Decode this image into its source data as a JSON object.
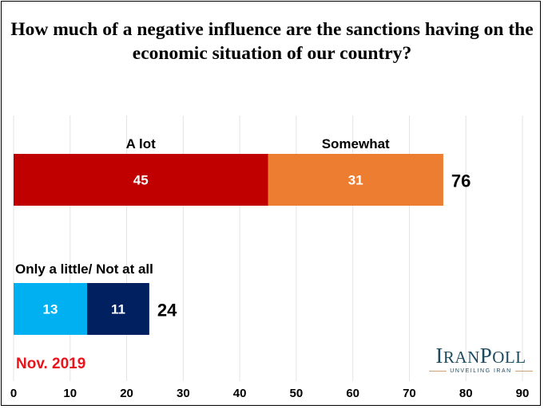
{
  "title": "How much of a negative influence are the sanctions having on the economic situation of our country?",
  "date_label": "Nov. 2019",
  "logo": {
    "name": "IRANPOLL",
    "tagline": "UNVEILING IRAN"
  },
  "chart_data": {
    "type": "bar",
    "orientation": "horizontal",
    "stacked": true,
    "title": "How much of a negative influence are the sanctions having on the economic situation of our country?",
    "xlim": [
      0,
      90
    ],
    "xticks": [
      0,
      10,
      20,
      30,
      40,
      50,
      60,
      70,
      80,
      90
    ],
    "grid": true,
    "bars": [
      {
        "group_label": "",
        "total": 76,
        "segments": [
          {
            "name": "A lot",
            "value": 45,
            "color": "#c00000"
          },
          {
            "name": "Somewhat",
            "value": 31,
            "color": "#ed7d31"
          }
        ]
      },
      {
        "group_label": "Only a little/ Not at all",
        "total": 24,
        "segments": [
          {
            "name": "",
            "value": 13,
            "color": "#00b0f0"
          },
          {
            "name": "",
            "value": 11,
            "color": "#002060"
          }
        ]
      }
    ]
  }
}
